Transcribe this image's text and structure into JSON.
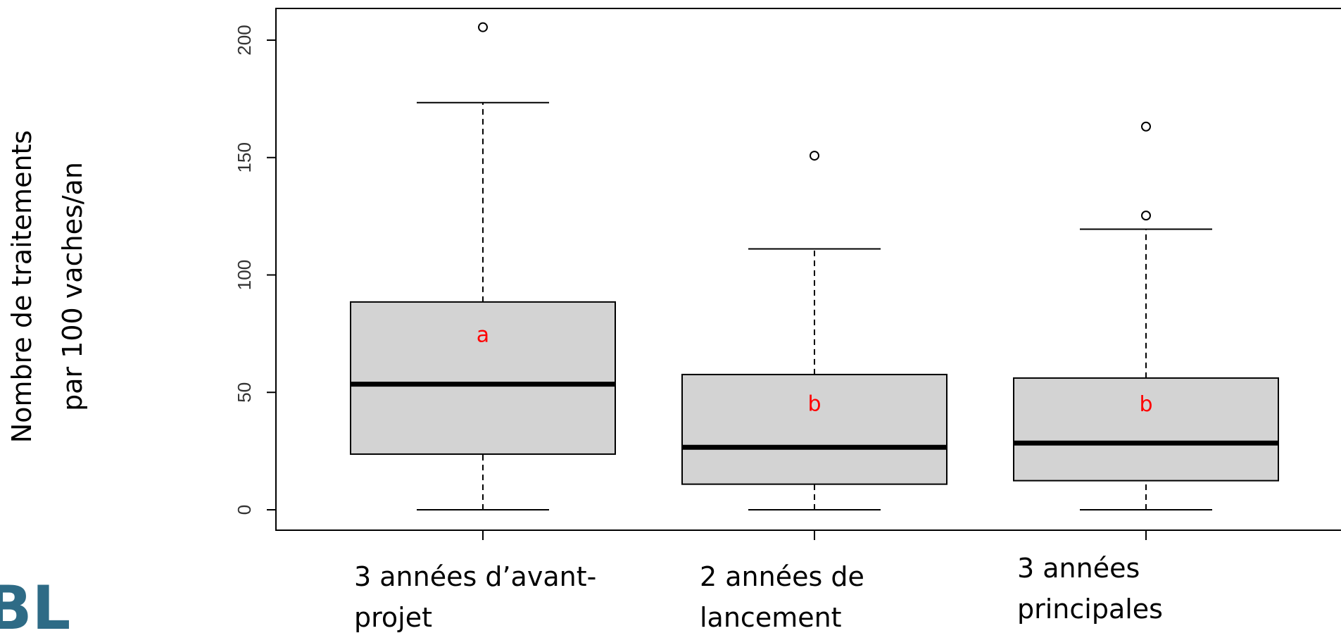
{
  "chart_data": {
    "type": "boxplot",
    "ylabel": [
      "Nombre de traitements",
      "par 100 vaches/an"
    ],
    "categories": [
      [
        "3 années d’avant-",
        "projet"
      ],
      [
        "2 années de",
        "lancement"
      ],
      [
        "3 années",
        "principales"
      ]
    ],
    "boxes": [
      {
        "whisker_low": 0,
        "q1": 23.7,
        "median": 53.5,
        "q3": 88.5,
        "whisker_high": 173.4,
        "outliers": [
          205.5
        ],
        "letter": "a"
      },
      {
        "whisker_low": 0,
        "q1": 10.9,
        "median": 26.6,
        "q3": 57.6,
        "whisker_high": 111.1,
        "outliers": [
          150.8
        ],
        "letter": "b"
      },
      {
        "whisker_low": 0,
        "q1": 12.4,
        "median": 28.4,
        "q3": 56.1,
        "whisker_high": 119.5,
        "outliers": [
          163.2,
          125.3
        ],
        "letter": "b"
      }
    ],
    "color": "#d3d3d3",
    "letter_color": "#ff0000",
    "ylim": [
      -8.7,
      213.5
    ],
    "yticks": [
      0,
      50,
      100,
      150,
      200
    ],
    "logo": "BL",
    "logo_color": "#2e6b86"
  }
}
